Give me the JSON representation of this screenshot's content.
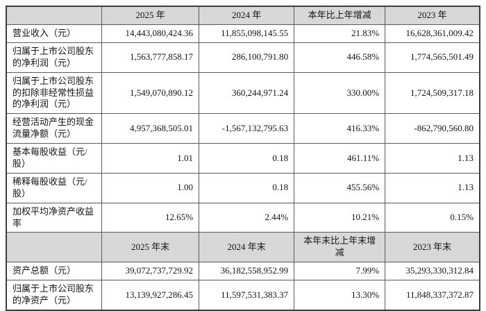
{
  "colors": {
    "header_bg": "#d8d8d8",
    "border": "#5a5a5a",
    "text": "#141414",
    "page_bg": "#ffffff"
  },
  "sections": [
    {
      "headers": {
        "label": "",
        "y1": "2025 年",
        "y2": "2024 年",
        "change": "本年比上年增减",
        "y3": "2023 年"
      },
      "rows": [
        {
          "label": "营业收入（元）",
          "y1": "14,443,080,424.36",
          "y2": "11,855,098,145.55",
          "change": "21.83%",
          "y3": "16,628,361,009.42"
        },
        {
          "label": "归属于上市公司股东的净利润（元）",
          "y1": "1,563,777,858.17",
          "y2": "286,100,791.80",
          "change": "446.58%",
          "y3": "1,774,565,501.49"
        },
        {
          "label": "归属于上市公司股东的扣除非经常性损益的净利润（元）",
          "y1": "1,549,070,890.12",
          "y2": "360,244,971.24",
          "change": "330.00%",
          "y3": "1,724,509,317.18"
        },
        {
          "label": "经营活动产生的现金流量净额（元）",
          "y1": "4,957,368,505.01",
          "y2": "-1,567,132,795.63",
          "change": "416.33%",
          "y3": "-862,790,560.80"
        },
        {
          "label": "基本每股收益（元/股）",
          "y1": "1.01",
          "y2": "0.18",
          "change": "461.11%",
          "y3": "1.13"
        },
        {
          "label": "稀释每股收益（元/股）",
          "y1": "1.00",
          "y2": "0.18",
          "change": "455.56%",
          "y3": "1.13"
        },
        {
          "label": "加权平均净资产收益率",
          "y1": "12.65%",
          "y2": "2.44%",
          "change": "10.21%",
          "y3": "0.15%"
        }
      ]
    },
    {
      "headers": {
        "label": "",
        "y1": "2025 年末",
        "y2": "2024 年末",
        "change": "本年末比上年末增减",
        "y3": "2023 年末"
      },
      "rows": [
        {
          "label": "资产总额（元）",
          "y1": "39,072,737,729.92",
          "y2": "36,182,558,952.99",
          "change": "7.99%",
          "y3": "35,293,330,312.84"
        },
        {
          "label": "归属于上市公司股东的净资产（元）",
          "y1": "13,139,927,286.45",
          "y2": "11,597,531,383.37",
          "change": "13.30%",
          "y3": "11,848,337,372.87"
        }
      ]
    }
  ]
}
